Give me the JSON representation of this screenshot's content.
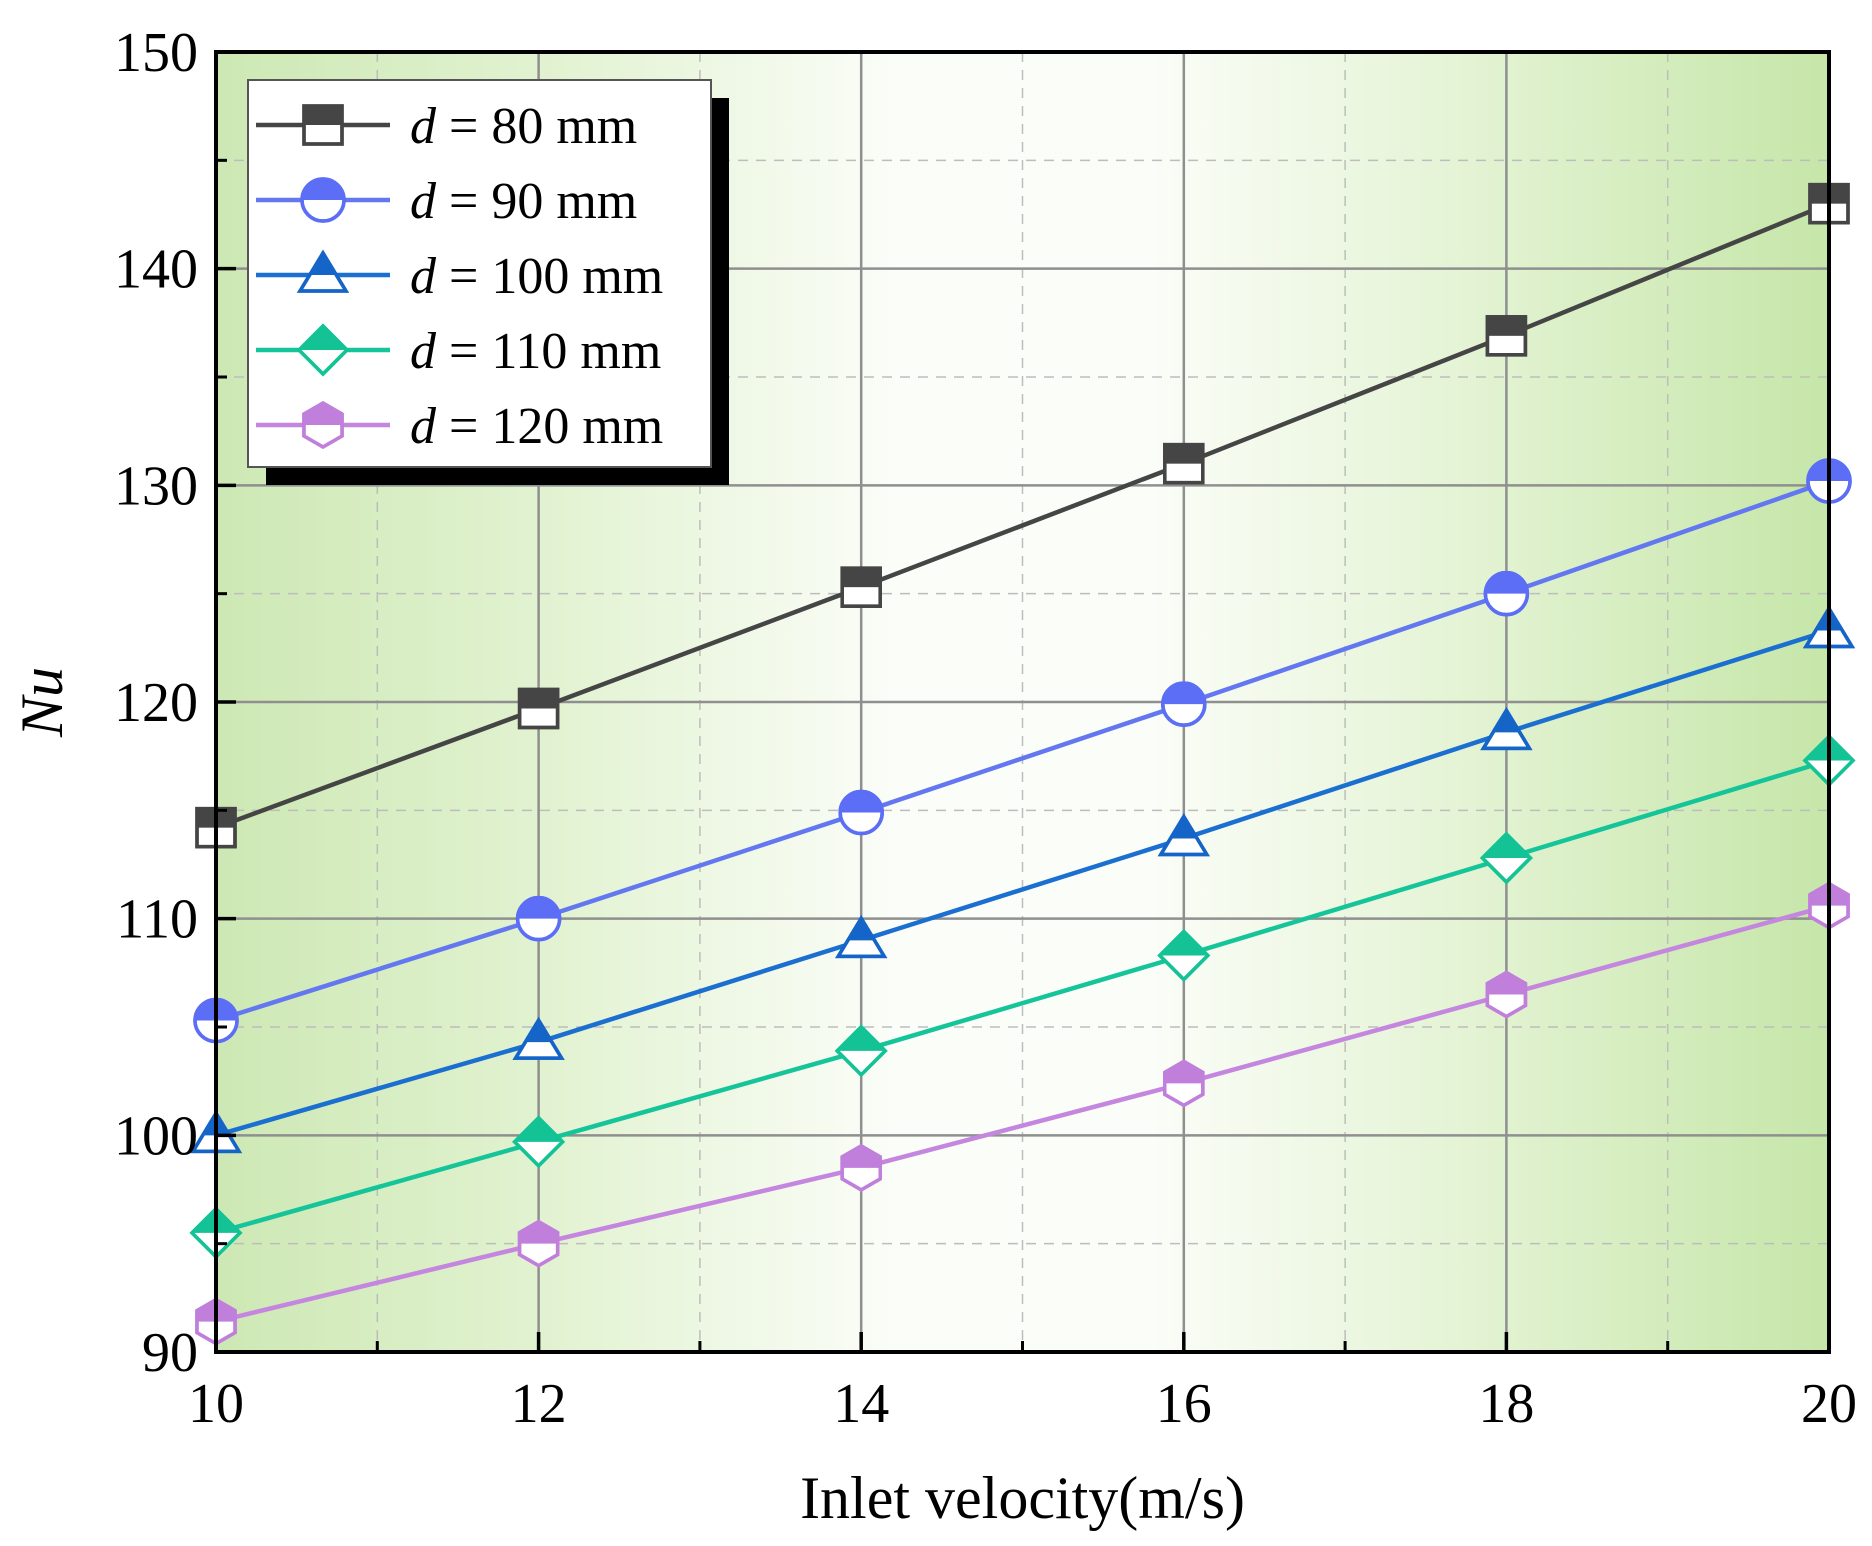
{
  "chart_data": {
    "type": "line",
    "xlabel": "Inlet velocity(m/s)",
    "ylabel": "Nu",
    "xlim": [
      10,
      20
    ],
    "ylim": [
      90,
      150
    ],
    "xticks": [
      10,
      12,
      14,
      16,
      18,
      20
    ],
    "yticks": [
      90,
      100,
      110,
      120,
      130,
      140,
      150
    ],
    "grid": true,
    "background": "green-white-green horizontal gradient",
    "legend": {
      "position": "top-left"
    },
    "x": [
      10,
      12,
      14,
      16,
      18,
      20
    ],
    "series": [
      {
        "name": "d = 80 mm",
        "name_italic": "d",
        "name_rest": " = 80 mm",
        "marker": "square",
        "color": "#454545",
        "marker_color": "#454545",
        "values": [
          114.2,
          119.7,
          125.3,
          131.0,
          136.9,
          143.0
        ]
      },
      {
        "name": "d = 90 mm",
        "name_italic": "d",
        "name_rest": " = 90 mm",
        "marker": "circle",
        "color": "#6378f0",
        "marker_color": "#5b6ef5",
        "values": [
          105.3,
          110.0,
          114.9,
          119.9,
          125.0,
          130.2
        ]
      },
      {
        "name": "d = 100 mm",
        "name_italic": "d",
        "name_rest": " = 100 mm",
        "marker": "triangle",
        "color": "#1a6fd0",
        "marker_color": "#1565c8",
        "values": [
          100.0,
          104.3,
          109.0,
          113.7,
          118.6,
          123.3
        ]
      },
      {
        "name": "d = 110 mm",
        "name_italic": "d",
        "name_rest": " = 110 mm",
        "marker": "diamond",
        "color": "#16c49a",
        "marker_color": "#13c295",
        "values": [
          95.5,
          99.7,
          103.9,
          108.3,
          112.8,
          117.3
        ]
      },
      {
        "name": "d = 120 mm",
        "name_italic": "d",
        "name_rest": " = 120 mm",
        "marker": "hexagon",
        "color": "#c486de",
        "marker_color": "#c17fdc",
        "values": [
          91.4,
          95.0,
          98.5,
          102.4,
          106.5,
          110.6
        ]
      }
    ]
  }
}
